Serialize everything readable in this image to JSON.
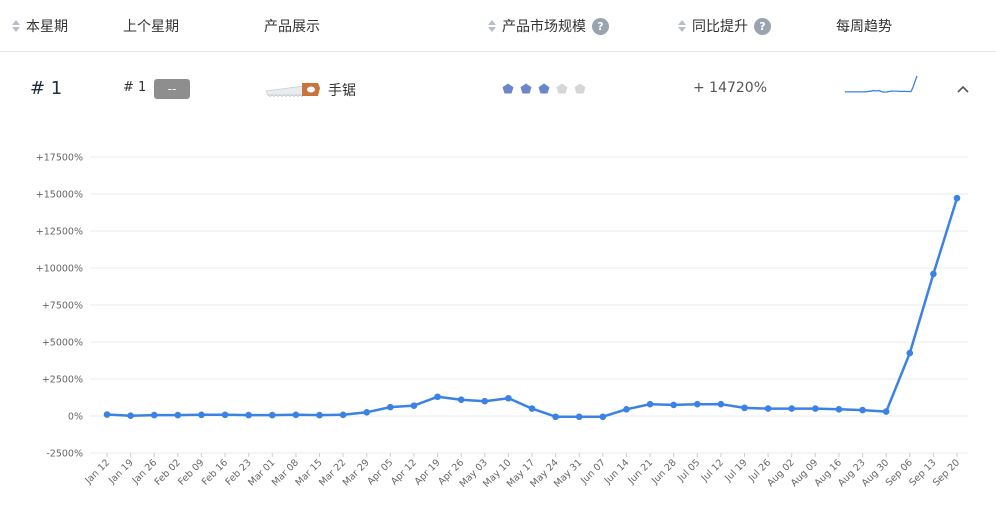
{
  "header": {
    "col_this_week": "本星期",
    "col_last_week": "上个星期",
    "col_product": "产品展示",
    "col_market_size": "产品市场规模",
    "col_yoy": "同比提升",
    "col_trend": "每周趋势",
    "help_icon": "?"
  },
  "row": {
    "rank": "# 1",
    "prev_rank": "# 1",
    "change_badge": "--",
    "product_name": "手锯",
    "product_icon": "hand-saw-icon",
    "market_level": 3,
    "market_max": 5,
    "yoy_text": "+ 14720%",
    "expanded": true
  },
  "colors": {
    "line": "#3b82e6",
    "star_active": "#6b87cc",
    "star_inactive": "#d6d6d6",
    "badge": "#8e8e8e",
    "grid": "#ebebeb"
  },
  "chart_data": {
    "type": "line",
    "x": [
      "Jan 12",
      "Jan 19",
      "Jan 26",
      "Feb 02",
      "Feb 09",
      "Feb 16",
      "Feb 23",
      "Mar 01",
      "Mar 08",
      "Mar 15",
      "Mar 22",
      "Mar 29",
      "Apr 05",
      "Apr 12",
      "Apr 19",
      "Apr 26",
      "May 03",
      "May 10",
      "May 17",
      "May 24",
      "May 31",
      "Jun 07",
      "Jun 14",
      "Jun 21",
      "Jun 28",
      "Jul 05",
      "Jul 12",
      "Jul 19",
      "Jul 26",
      "Aug 02",
      "Aug 09",
      "Aug 16",
      "Aug 23",
      "Aug 30",
      "Sep 06",
      "Sep 13",
      "Sep 20"
    ],
    "series": [
      {
        "values": [
          100,
          20,
          60,
          60,
          80,
          80,
          60,
          60,
          80,
          60,
          80,
          250,
          600,
          700,
          1300,
          1100,
          1000,
          1200,
          500,
          -50,
          -50,
          -50,
          450,
          800,
          750,
          800,
          800,
          550,
          500,
          500,
          500,
          450,
          400,
          300,
          4250,
          9600,
          14720
        ]
      }
    ],
    "yticks": [
      "+17500%",
      "+15000%",
      "+12500%",
      "+10000%",
      "+7500%",
      "+5000%",
      "+2500%",
      "0%",
      "-2500%"
    ],
    "ylim": [
      -2500,
      17500
    ],
    "grid": true,
    "legend": "none"
  }
}
